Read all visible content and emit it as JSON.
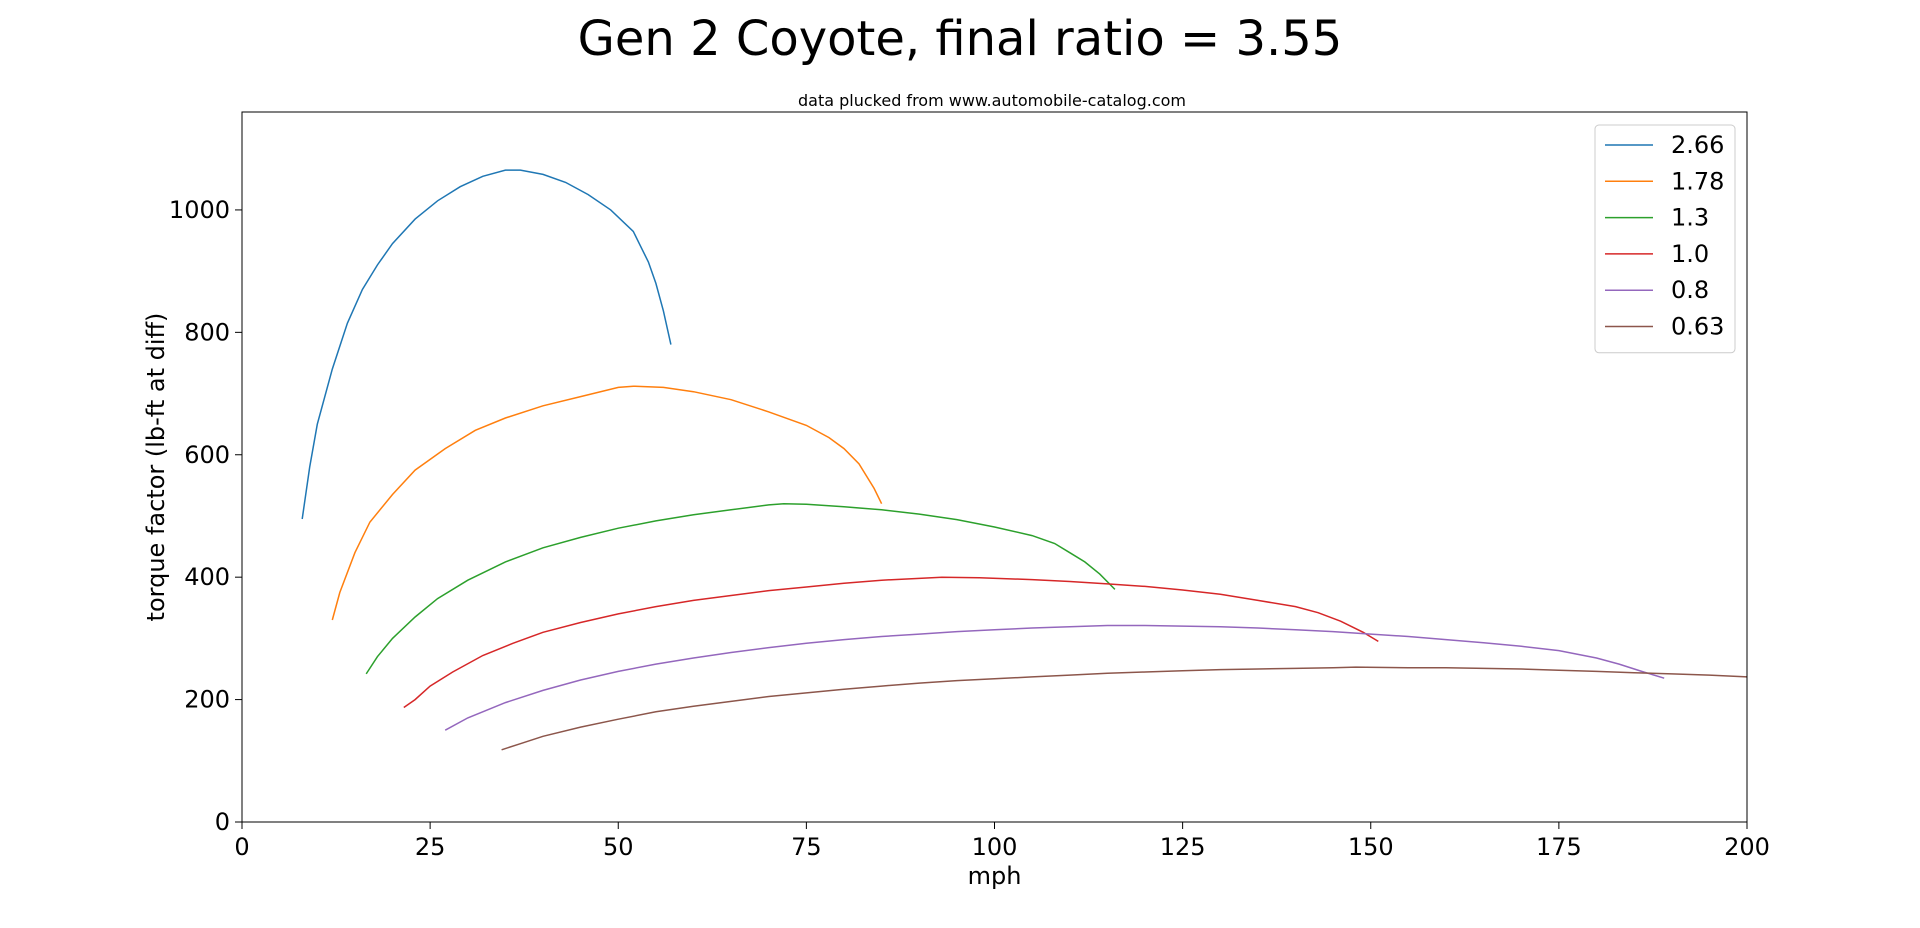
{
  "chart_data": {
    "type": "line",
    "title": "Gen 2 Coyote, final ratio = 3.55",
    "subtitle": "data plucked from www.automobile-catalog.com",
    "xlabel": "mph",
    "ylabel": "torque factor (lb-ft at diff)",
    "xlim": [
      0,
      200
    ],
    "ylim": [
      0,
      1160
    ],
    "xticks": [
      0,
      25,
      50,
      75,
      100,
      125,
      150,
      175,
      200
    ],
    "yticks": [
      0,
      200,
      400,
      600,
      800,
      1000
    ],
    "grid": false,
    "legend_position": "top-right",
    "series": [
      {
        "name": "2.66",
        "color": "#1f77b4",
        "points": [
          [
            8,
            495
          ],
          [
            9,
            580
          ],
          [
            10,
            650
          ],
          [
            12,
            740
          ],
          [
            14,
            815
          ],
          [
            16,
            870
          ],
          [
            18,
            910
          ],
          [
            20,
            945
          ],
          [
            23,
            985
          ],
          [
            26,
            1015
          ],
          [
            29,
            1038
          ],
          [
            32,
            1055
          ],
          [
            35,
            1065
          ],
          [
            37,
            1065
          ],
          [
            40,
            1058
          ],
          [
            43,
            1045
          ],
          [
            46,
            1025
          ],
          [
            49,
            1000
          ],
          [
            52,
            965
          ],
          [
            53,
            940
          ],
          [
            54,
            915
          ],
          [
            55,
            880
          ],
          [
            56,
            835
          ],
          [
            57,
            780
          ]
        ]
      },
      {
        "name": "1.78",
        "color": "#ff7f0e",
        "points": [
          [
            12,
            330
          ],
          [
            13,
            375
          ],
          [
            15,
            440
          ],
          [
            17,
            490
          ],
          [
            20,
            535
          ],
          [
            23,
            575
          ],
          [
            27,
            610
          ],
          [
            31,
            640
          ],
          [
            35,
            660
          ],
          [
            40,
            680
          ],
          [
            45,
            695
          ],
          [
            50,
            710
          ],
          [
            52,
            712
          ],
          [
            56,
            710
          ],
          [
            60,
            703
          ],
          [
            65,
            690
          ],
          [
            70,
            670
          ],
          [
            75,
            648
          ],
          [
            78,
            628
          ],
          [
            80,
            610
          ],
          [
            82,
            585
          ],
          [
            84,
            545
          ],
          [
            85,
            520
          ]
        ]
      },
      {
        "name": "1.3",
        "color": "#2ca02c",
        "points": [
          [
            16.5,
            242
          ],
          [
            18,
            270
          ],
          [
            20,
            300
          ],
          [
            23,
            335
          ],
          [
            26,
            365
          ],
          [
            30,
            395
          ],
          [
            35,
            425
          ],
          [
            40,
            448
          ],
          [
            45,
            465
          ],
          [
            50,
            480
          ],
          [
            55,
            492
          ],
          [
            60,
            502
          ],
          [
            65,
            510
          ],
          [
            70,
            518
          ],
          [
            72,
            520
          ],
          [
            75,
            519
          ],
          [
            80,
            515
          ],
          [
            85,
            510
          ],
          [
            90,
            503
          ],
          [
            95,
            494
          ],
          [
            100,
            482
          ],
          [
            105,
            468
          ],
          [
            108,
            455
          ],
          [
            110,
            440
          ],
          [
            112,
            425
          ],
          [
            114,
            405
          ],
          [
            116,
            380
          ]
        ]
      },
      {
        "name": "1.0",
        "color": "#d62728",
        "points": [
          [
            21.5,
            187
          ],
          [
            23,
            200
          ],
          [
            25,
            222
          ],
          [
            28,
            245
          ],
          [
            32,
            272
          ],
          [
            36,
            292
          ],
          [
            40,
            310
          ],
          [
            45,
            326
          ],
          [
            50,
            340
          ],
          [
            55,
            352
          ],
          [
            60,
            362
          ],
          [
            65,
            370
          ],
          [
            70,
            378
          ],
          [
            75,
            384
          ],
          [
            80,
            390
          ],
          [
            85,
            395
          ],
          [
            90,
            398
          ],
          [
            93,
            400
          ],
          [
            98,
            399
          ],
          [
            105,
            396
          ],
          [
            110,
            393
          ],
          [
            115,
            389
          ],
          [
            120,
            385
          ],
          [
            125,
            379
          ],
          [
            130,
            372
          ],
          [
            135,
            362
          ],
          [
            140,
            352
          ],
          [
            143,
            342
          ],
          [
            146,
            328
          ],
          [
            149,
            310
          ],
          [
            151,
            295
          ]
        ]
      },
      {
        "name": "0.8",
        "color": "#9467bd",
        "points": [
          [
            27,
            150
          ],
          [
            30,
            170
          ],
          [
            35,
            195
          ],
          [
            40,
            215
          ],
          [
            45,
            232
          ],
          [
            50,
            246
          ],
          [
            55,
            258
          ],
          [
            60,
            268
          ],
          [
            65,
            277
          ],
          [
            70,
            285
          ],
          [
            75,
            292
          ],
          [
            80,
            298
          ],
          [
            85,
            303
          ],
          [
            90,
            307
          ],
          [
            95,
            311
          ],
          [
            100,
            314
          ],
          [
            105,
            317
          ],
          [
            110,
            319
          ],
          [
            115,
            321
          ],
          [
            120,
            321
          ],
          [
            125,
            320
          ],
          [
            130,
            319
          ],
          [
            135,
            317
          ],
          [
            140,
            314
          ],
          [
            145,
            311
          ],
          [
            150,
            307
          ],
          [
            155,
            303
          ],
          [
            160,
            298
          ],
          [
            165,
            293
          ],
          [
            170,
            287
          ],
          [
            175,
            280
          ],
          [
            180,
            268
          ],
          [
            183,
            258
          ],
          [
            186,
            246
          ],
          [
            189,
            235
          ]
        ]
      },
      {
        "name": "0.63",
        "color": "#8c564b",
        "points": [
          [
            34.5,
            118
          ],
          [
            37,
            128
          ],
          [
            40,
            140
          ],
          [
            45,
            155
          ],
          [
            50,
            168
          ],
          [
            55,
            180
          ],
          [
            60,
            189
          ],
          [
            65,
            197
          ],
          [
            70,
            205
          ],
          [
            75,
            211
          ],
          [
            80,
            217
          ],
          [
            85,
            222
          ],
          [
            90,
            227
          ],
          [
            95,
            231
          ],
          [
            100,
            234
          ],
          [
            105,
            237
          ],
          [
            110,
            240
          ],
          [
            115,
            243
          ],
          [
            120,
            245
          ],
          [
            125,
            247
          ],
          [
            130,
            249
          ],
          [
            135,
            250
          ],
          [
            140,
            251
          ],
          [
            145,
            252
          ],
          [
            148,
            253
          ],
          [
            155,
            252
          ],
          [
            160,
            252
          ],
          [
            165,
            251
          ],
          [
            170,
            250
          ],
          [
            175,
            248
          ],
          [
            180,
            246
          ],
          [
            185,
            244
          ],
          [
            190,
            242
          ],
          [
            195,
            240
          ],
          [
            200,
            237
          ]
        ]
      }
    ]
  }
}
